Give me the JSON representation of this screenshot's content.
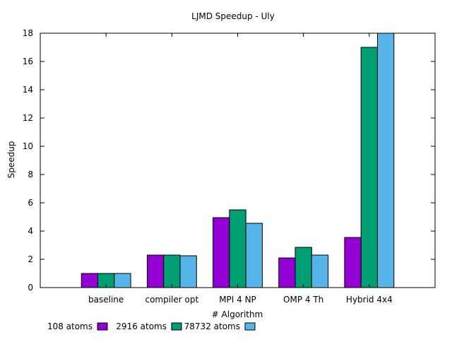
{
  "chart_data": {
    "type": "bar",
    "title": "LJMD Speedup - Uly",
    "xlabel": "# Algorithm",
    "ylabel": "Speedup",
    "ylim": [
      0,
      18
    ],
    "yticks": [
      0,
      2,
      4,
      6,
      8,
      10,
      12,
      14,
      16,
      18
    ],
    "grid": false,
    "legend_position": "bottom-left",
    "categories": [
      "baseline",
      "compiler opt",
      "MPI 4 NP",
      "OMP 4 Th",
      "Hybrid 4x4"
    ],
    "series": [
      {
        "name": "108 atoms",
        "color": "#9400d3",
        "values": [
          1.0,
          2.3,
          4.95,
          2.1,
          3.55
        ]
      },
      {
        "name": "2916 atoms",
        "color": "#009e73",
        "values": [
          1.0,
          2.3,
          5.5,
          2.85,
          17.0
        ]
      },
      {
        "name": "78732 atoms",
        "color": "#56b4e9",
        "values": [
          1.0,
          2.25,
          4.55,
          2.3,
          18.0
        ]
      }
    ]
  }
}
